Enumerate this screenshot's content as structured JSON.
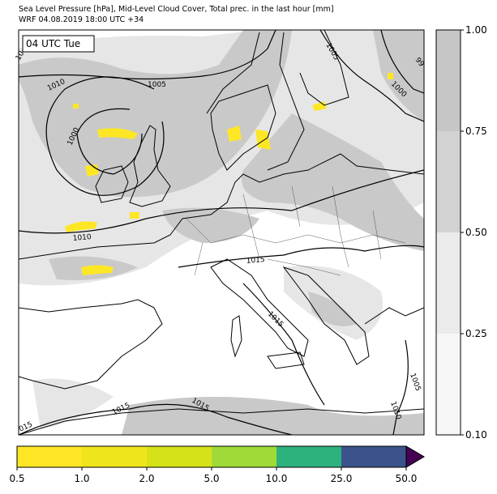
{
  "title": "Sea Level Pressure [hPa], Mid-Level Cloud Cover, Total prec. in the last hour [mm]",
  "subtitle": "WRF 04.08.2019 18:00 UTC +34",
  "time_label": "04 UTC Tue",
  "contour_labels": [
    1005,
    1010,
    1000,
    1010,
    1015,
    1015,
    1015,
    1015,
    "015",
    1005,
    1000,
    "99",
    1005,
    1010,
    "10"
  ],
  "cloud_colorbar": {
    "ticks": [
      {
        "value": 0.1,
        "label": "0.10"
      },
      {
        "value": 0.25,
        "label": "0.25"
      },
      {
        "value": 0.5,
        "label": "0.50"
      },
      {
        "value": 0.75,
        "label": "0.75"
      },
      {
        "value": 1.0,
        "label": "1.00"
      }
    ],
    "colors": [
      "#f7f7f7",
      "#ebebeb",
      "#d2d2d2",
      "#c6c6c6"
    ]
  },
  "precip_colorbar": {
    "ticks": [
      {
        "value": 0.5,
        "label": "0.5"
      },
      {
        "value": 1.0,
        "label": "1.0"
      },
      {
        "value": 2.0,
        "label": "2.0"
      },
      {
        "value": 5.0,
        "label": "5.0"
      },
      {
        "value": 10.0,
        "label": "10.0"
      },
      {
        "value": 25.0,
        "label": "25.0"
      },
      {
        "value": 50.0,
        "label": "50.0"
      }
    ],
    "colors": [
      "#fde725",
      "#efe51c",
      "#d5e21a",
      "#a0da39",
      "#2db27d",
      "#3b528b"
    ],
    "extend_color": "#440154"
  }
}
